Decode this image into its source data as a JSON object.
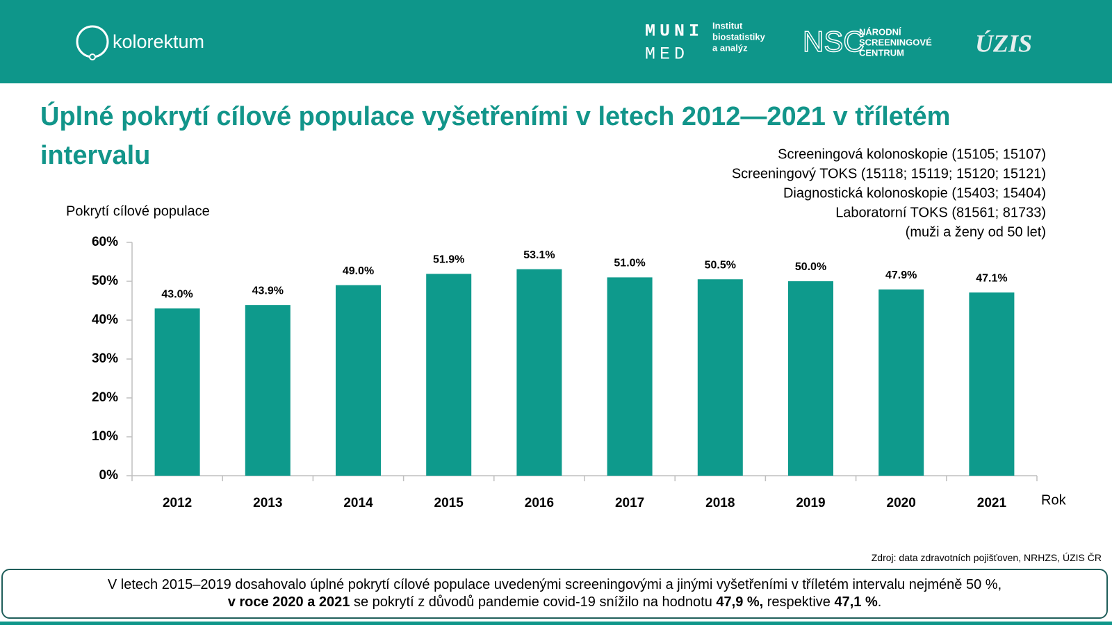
{
  "header": {
    "kolorektum": "kolorektum",
    "muni": "MUNI",
    "med": "MED",
    "institut": [
      "Institut",
      "biostatistiky",
      "a analýz"
    ],
    "nsc": "NSC",
    "nsc_name": [
      "NÁRODNÍ",
      "SCREENINGOVÉ",
      "CENTRUM"
    ],
    "uzis": "ÚZIS"
  },
  "chart_data": {
    "type": "bar",
    "title": "Úplné pokrytí cílové populace vyšetřeními v letech 2012—2021 v tříletém intervalu",
    "notes": [
      "Screeningová kolonoskopie (15105; 15107)",
      "Screeningový TOKS (15118; 15119; 15120; 15121)",
      "Diagnostická kolonoskopie (15403; 15404)",
      "Laboratorní TOKS (81561; 81733)",
      "(muži a ženy od 50 let)"
    ],
    "y_label": "Pokrytí cílové populace",
    "x_label": "Rok",
    "categories": [
      "2012",
      "2013",
      "2014",
      "2015",
      "2016",
      "2017",
      "2018",
      "2019",
      "2020",
      "2021"
    ],
    "values": [
      43.0,
      43.9,
      49.0,
      51.9,
      53.1,
      51.0,
      50.5,
      50.0,
      47.9,
      47.1
    ],
    "value_labels": [
      "43.0%",
      "43.9%",
      "49.0%",
      "51.9%",
      "53.1%",
      "51.0%",
      "50.5%",
      "50.0%",
      "47.9%",
      "47.1%"
    ],
    "color": "#0e9a8c",
    "ylim": [
      0,
      60
    ],
    "yticks": [
      {
        "value": 0,
        "label": "0%"
      },
      {
        "value": 10,
        "label": "10%"
      },
      {
        "value": 20,
        "label": "20%"
      },
      {
        "value": 30,
        "label": "30%"
      },
      {
        "value": 40,
        "label": "40%"
      },
      {
        "value": 50,
        "label": "50%"
      },
      {
        "value": 60,
        "label": "60%"
      }
    ],
    "grid": false
  },
  "source": "Zdroj: data zdravotních pojišťoven, NRHZS, ÚZIS ČR",
  "conclusion": [
    "V letech 2015–2019 dosahovalo úplné pokrytí cílové populace uvedenými screeningovými a jinými vyšetřeními v tříletém intervalu nejméně 50 %,",
    "v roce 2020 a 2021",
    " se pokrytí z důvodů pandemie covid-19 snížilo na hodnotu ",
    "47,9 %,",
    " respektive ",
    "47,1 %",
    "."
  ]
}
